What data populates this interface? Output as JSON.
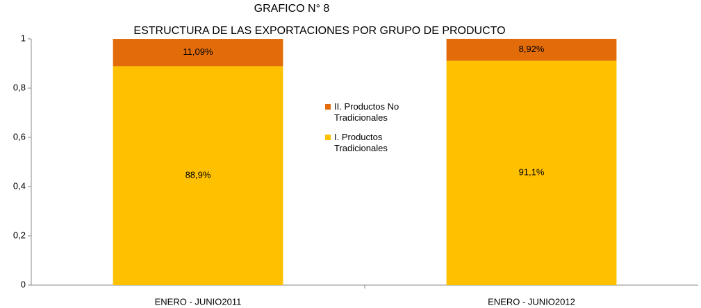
{
  "chart_data": {
    "type": "stacked_bar",
    "title": "GRAFICO N°  8",
    "subtitle": "ESTRUCTURA DE LAS EXPORTACIONES POR GRUPO DE PRODUCTO",
    "categories": [
      "ENERO - JUNIO2011",
      "ENERO - JUNIO2012"
    ],
    "series": [
      {
        "name": "I. Productos Tradicionales",
        "color": "#ffc000",
        "values": [
          0.889,
          0.911
        ],
        "value_labels": [
          "88,9%",
          "91,1%"
        ]
      },
      {
        "name": "II. Productos No Tradicionales",
        "color": "#e36c0a",
        "values": [
          0.1109,
          0.0892
        ],
        "value_labels": [
          "11,09%",
          "8,92%"
        ]
      }
    ],
    "ylim": [
      0,
      1
    ],
    "yticks": [
      0,
      {
        "value": 0.2,
        "label": "0,2"
      },
      {
        "value": 0.4,
        "label": "0,4"
      },
      {
        "value": 0.6,
        "label": "0,6"
      },
      {
        "value": 0.8,
        "label": "0,8"
      },
      1
    ],
    "grid": false,
    "legend": "center"
  }
}
